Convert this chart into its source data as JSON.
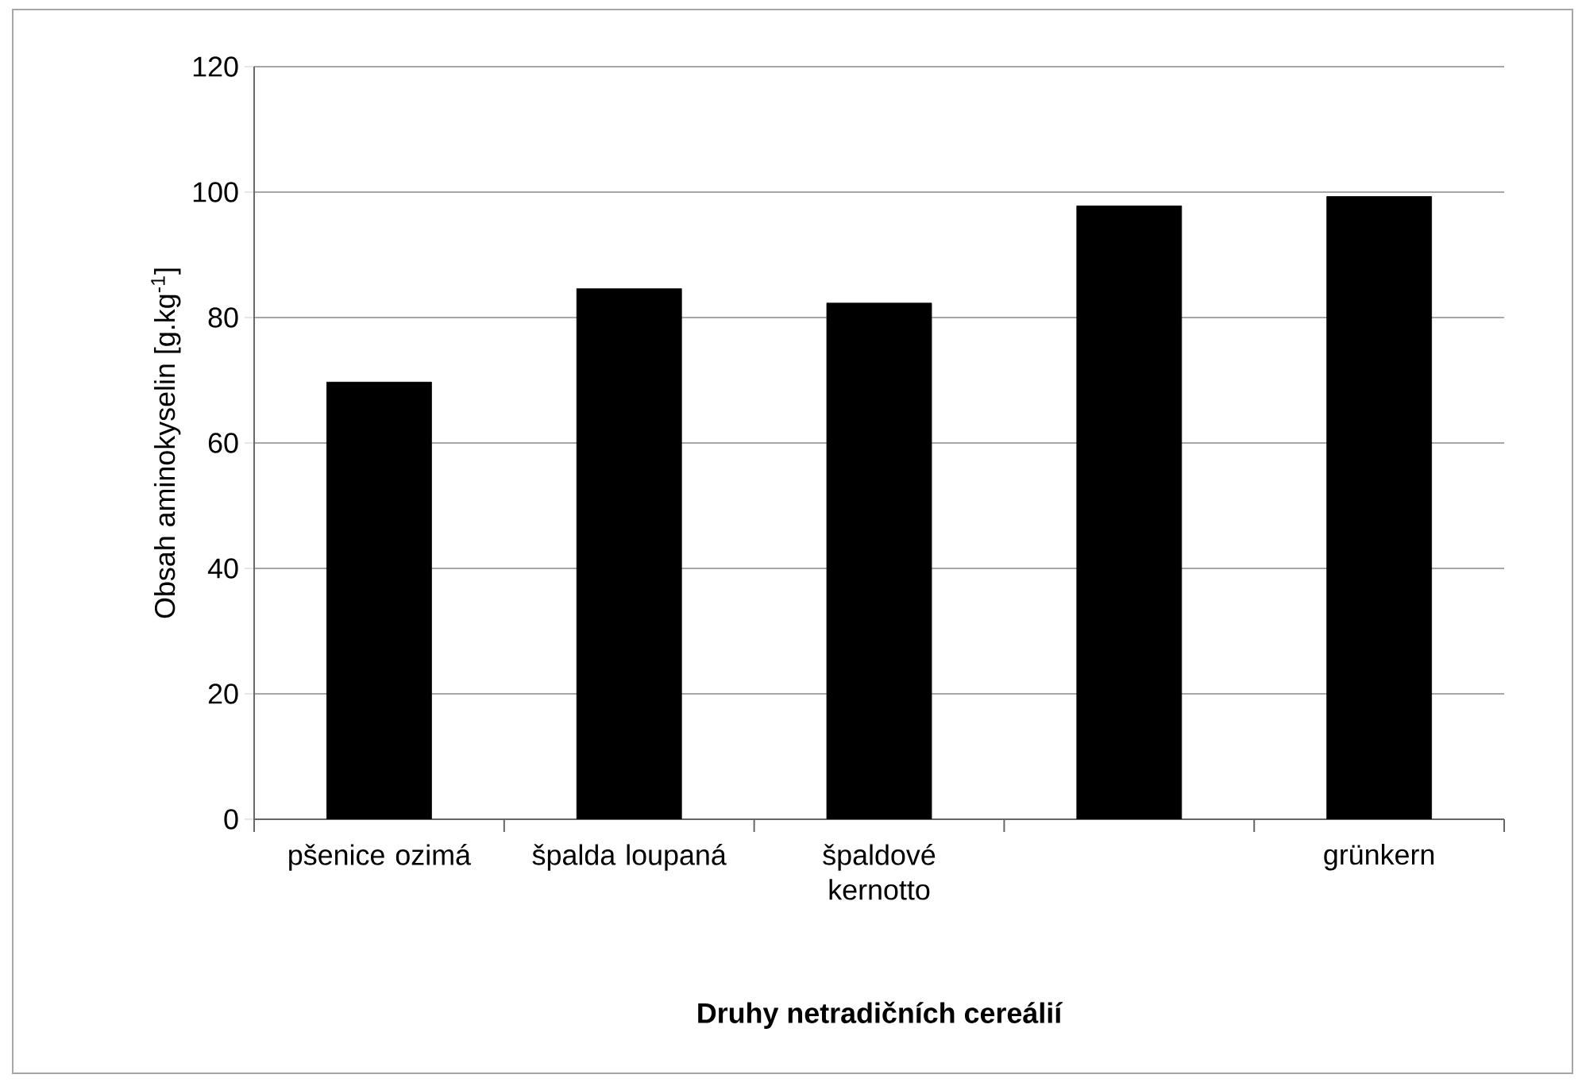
{
  "chart_data": {
    "type": "bar",
    "xlabel": "Druhy netradičních cereálií",
    "ylabel": "Obsah aminokyselin [g.kg$^{-1}$]",
    "categories": [
      "pšenice ozimá",
      "špalda loupaná",
      "špaldové kernotto",
      null,
      "grünkern"
    ],
    "values": [
      69.7,
      84.6,
      82.3,
      97.8,
      99.3
    ],
    "color": "#000000",
    "ylim": [
      0,
      120
    ],
    "yticks": [
      0,
      20,
      40,
      60,
      80,
      100,
      120
    ],
    "grid": "y"
  }
}
